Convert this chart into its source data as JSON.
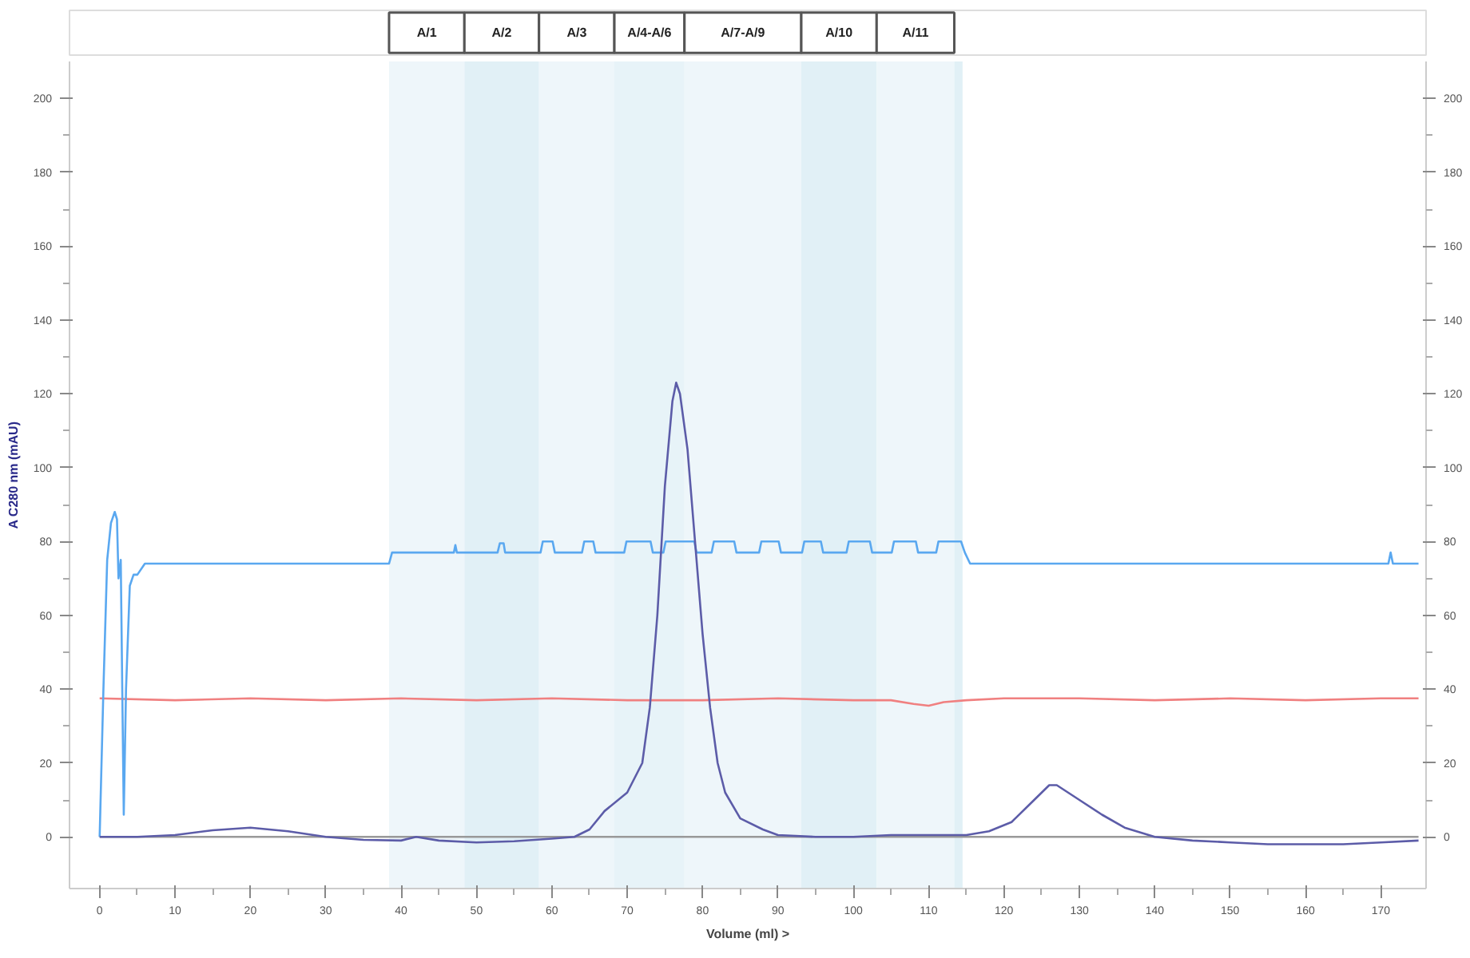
{
  "chart_data": {
    "type": "line",
    "xlabel": "Volume (ml) >",
    "ylabel": "A C280 nm (mAU)",
    "xlim": [
      -4,
      176
    ],
    "xticks": [
      0,
      10,
      20,
      30,
      40,
      50,
      60,
      70,
      80,
      90,
      100,
      110,
      120,
      130,
      140,
      150,
      160,
      170
    ],
    "ylim": [
      -14,
      210
    ],
    "yticks": [
      0,
      20,
      40,
      60,
      80,
      100,
      120,
      140,
      160,
      180,
      200
    ],
    "y2lim": [
      -14,
      210
    ],
    "y2ticks": [
      0,
      20,
      40,
      60,
      80,
      100,
      120,
      140,
      160,
      180,
      200
    ],
    "grid": false,
    "marker": "none",
    "line_style": "solid",
    "bands": [
      {
        "axis": "x",
        "from": 38.4,
        "to": 48.4,
        "label": "A/1",
        "color": "#eef6fa"
      },
      {
        "axis": "x",
        "from": 48.4,
        "to": 58.3,
        "label": "A/2",
        "color": "#e1f0f6"
      },
      {
        "axis": "x",
        "from": 58.3,
        "to": 68.3,
        "label": "A/3",
        "color": "#eef6fa"
      },
      {
        "axis": "x",
        "from": 68.3,
        "to": 77.6,
        "label": "A/4-A/6",
        "color": "#e7f3f8"
      },
      {
        "axis": "x",
        "from": 77.6,
        "to": 93.1,
        "label": "A/7-A/9",
        "color": "#eef6fa"
      },
      {
        "axis": "x",
        "from": 93.1,
        "to": 103.1,
        "label": "A/10",
        "color": "#e1f0f6"
      },
      {
        "axis": "x",
        "from": 103.1,
        "to": 113.4,
        "label": "A/11",
        "color": "#eef6fa"
      },
      {
        "axis": "x",
        "from": 113.4,
        "to": 114.5,
        "label": null,
        "color": "#e1f0f6"
      }
    ],
    "series": [
      {
        "color": "#999999",
        "x": [
          0,
          175
        ],
        "values": [
          0,
          0
        ]
      },
      {
        "color": "#f08080",
        "x": [
          0,
          10,
          20,
          30,
          40,
          50,
          60,
          70,
          80,
          90,
          100,
          105,
          108,
          110,
          112,
          115,
          120,
          130,
          140,
          150,
          160,
          170,
          175
        ],
        "values": [
          37.5,
          37,
          37.5,
          37,
          37.5,
          37,
          37.5,
          37,
          37,
          37.5,
          37,
          37,
          36,
          35.5,
          36.5,
          37,
          37.5,
          37.5,
          37,
          37.5,
          37,
          37.5,
          37.5
        ]
      },
      {
        "color": "#5aa8f0",
        "x": [
          0,
          0.5,
          1,
          1.5,
          2,
          2.3,
          2.5,
          2.8,
          3,
          3.2,
          3.5,
          4,
          4.5,
          5,
          6,
          38.4,
          38.8,
          47,
          47.2,
          47.4,
          52.8,
          53.1,
          53.6,
          53.8,
          58.5,
          58.8,
          60.1,
          60.4,
          64,
          64.3,
          65.5,
          65.8,
          69.6,
          69.9,
          73.1,
          73.4,
          74.8,
          75.1,
          78.9,
          79.2,
          81.2,
          81.5,
          84.2,
          84.5,
          87.5,
          87.8,
          90.1,
          90.4,
          93.2,
          93.5,
          95.7,
          96,
          99.1,
          99.4,
          102.2,
          102.5,
          105.1,
          105.4,
          108.3,
          108.6,
          111,
          111.3,
          114.3,
          114.8,
          115.5,
          171,
          171.3,
          171.6,
          175
        ],
        "values": [
          0,
          40,
          75,
          85,
          88,
          86,
          70,
          75,
          40,
          6,
          40,
          68,
          71,
          71,
          74,
          74,
          77,
          77,
          79,
          77,
          77,
          79.5,
          79.5,
          77,
          77,
          80,
          80,
          77,
          77,
          80,
          80,
          77,
          77,
          80,
          80,
          77,
          77,
          80,
          80,
          77,
          77,
          80,
          80,
          77,
          77,
          80,
          80,
          77,
          77,
          80,
          80,
          77,
          77,
          80,
          80,
          77,
          77,
          80,
          80,
          77,
          77,
          80,
          80,
          77,
          74,
          74,
          77,
          74,
          74
        ]
      },
      {
        "color": "#5c5ca8",
        "x": [
          0,
          5,
          10,
          15,
          20,
          25,
          30,
          35,
          40,
          42,
          45,
          50,
          55,
          60,
          63,
          65,
          67,
          70,
          72,
          73,
          74,
          75,
          76,
          76.5,
          77,
          78,
          79,
          80,
          81,
          82,
          83,
          85,
          88,
          90,
          95,
          100,
          105,
          110,
          115,
          118,
          121,
          124,
          126,
          127,
          130,
          133,
          136,
          140,
          145,
          150,
          155,
          160,
          165,
          170,
          175
        ],
        "values": [
          0,
          0,
          0.5,
          1.8,
          2.5,
          1.5,
          0,
          -0.8,
          -1,
          0,
          -1,
          -1.5,
          -1.2,
          -0.5,
          0,
          2,
          7,
          12,
          20,
          35,
          60,
          95,
          118,
          123,
          120,
          105,
          80,
          55,
          35,
          20,
          12,
          5,
          2,
          0.5,
          0,
          0,
          0.5,
          0.5,
          0.5,
          1.5,
          4,
          10,
          14,
          14,
          10,
          6,
          2.5,
          0,
          -1,
          -1.5,
          -2,
          -2,
          -2,
          -1.5,
          -1
        ]
      }
    ]
  }
}
